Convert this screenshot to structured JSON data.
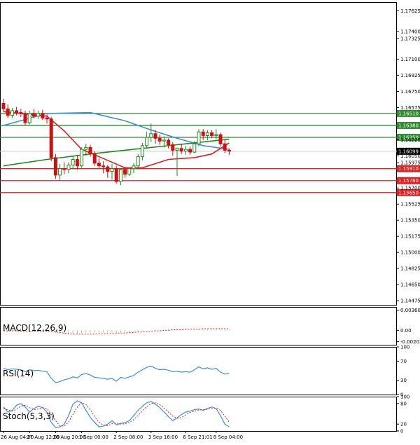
{
  "chart_data": {
    "type": "candlestick",
    "main": {
      "y_ticks": [
        "1.17625",
        "1.17400",
        "1.17325",
        "1.17100",
        "1.16925",
        "1.16750",
        "1.16575",
        "1.16225",
        "1.16050",
        "1.15975",
        "1.15700",
        "1.15525",
        "1.15350",
        "1.15175",
        "1.15000",
        "1.14825",
        "1.14650",
        "1.14475"
      ],
      "y_tick_values": [
        1.17625,
        1.174,
        1.17325,
        1.171,
        1.16925,
        1.1675,
        1.16575,
        1.16225,
        1.1605,
        1.15975,
        1.157,
        1.15525,
        1.1535,
        1.15175,
        1.15,
        1.14825,
        1.1465,
        1.14475
      ],
      "ylim": [
        1.1443,
        1.1772
      ],
      "levels": [
        {
          "label": "1.16510",
          "value": 1.1651,
          "color": "#2e8b2e"
        },
        {
          "label": "1.16380",
          "value": 1.1638,
          "color": "#2e8b2e"
        },
        {
          "label": "1.16250",
          "value": 1.1625,
          "color": "#2e8b2e"
        },
        {
          "label": "1.15910",
          "value": 1.1591,
          "color": "#e02020"
        },
        {
          "label": "1.15780",
          "value": 1.1578,
          "color": "#e02020"
        },
        {
          "label": "1.15650",
          "value": 1.1565,
          "color": "#e02020"
        }
      ],
      "current_price": {
        "label": "1.16099",
        "value": 1.16099
      },
      "candles": [
        [
          1.1662,
          1.1667,
          1.1653,
          1.1656
        ],
        [
          1.1656,
          1.1661,
          1.1646,
          1.1649
        ],
        [
          1.1649,
          1.1657,
          1.1646,
          1.1654
        ],
        [
          1.1654,
          1.1658,
          1.1649,
          1.1652
        ],
        [
          1.1652,
          1.1656,
          1.1647,
          1.1651
        ],
        [
          1.1651,
          1.1654,
          1.1638,
          1.1641
        ],
        [
          1.1641,
          1.1654,
          1.1639,
          1.1651
        ],
        [
          1.1651,
          1.1656,
          1.1646,
          1.1648
        ],
        [
          1.1648,
          1.1654,
          1.1645,
          1.1651
        ],
        [
          1.1651,
          1.1655,
          1.1644,
          1.1646
        ],
        [
          1.1646,
          1.165,
          1.164,
          1.1645
        ],
        [
          1.1645,
          1.1647,
          1.1599,
          1.1603
        ],
        [
          1.1603,
          1.1607,
          1.158,
          1.1584
        ],
        [
          1.1584,
          1.1596,
          1.1579,
          1.1591
        ],
        [
          1.1591,
          1.1598,
          1.1585,
          1.159
        ],
        [
          1.159,
          1.1598,
          1.1586,
          1.1595
        ],
        [
          1.1595,
          1.1605,
          1.1591,
          1.1601
        ],
        [
          1.1601,
          1.1606,
          1.159,
          1.1594
        ],
        [
          1.1594,
          1.1614,
          1.1592,
          1.1612
        ],
        [
          1.1612,
          1.1618,
          1.1605,
          1.1614
        ],
        [
          1.1614,
          1.1617,
          1.1604,
          1.1607
        ],
        [
          1.1607,
          1.161,
          1.1594,
          1.1597
        ],
        [
          1.1597,
          1.1602,
          1.1591,
          1.1594
        ],
        [
          1.1594,
          1.1599,
          1.1586,
          1.1593
        ],
        [
          1.1593,
          1.1595,
          1.1581,
          1.1588
        ],
        [
          1.1588,
          1.1596,
          1.1579,
          1.1591
        ],
        [
          1.1591,
          1.1594,
          1.1575,
          1.1577
        ],
        [
          1.1577,
          1.1591,
          1.1573,
          1.159
        ],
        [
          1.159,
          1.1593,
          1.1581,
          1.1585
        ],
        [
          1.1585,
          1.1592,
          1.1583,
          1.1591
        ],
        [
          1.1591,
          1.1597,
          1.1586,
          1.1594
        ],
        [
          1.1594,
          1.1607,
          1.159,
          1.1604
        ],
        [
          1.1604,
          1.1619,
          1.16,
          1.1616
        ],
        [
          1.1616,
          1.1631,
          1.1613,
          1.1625
        ],
        [
          1.1625,
          1.164,
          1.162,
          1.1629
        ],
        [
          1.1629,
          1.1633,
          1.1618,
          1.1624
        ],
        [
          1.1624,
          1.1628,
          1.1617,
          1.1621
        ],
        [
          1.1621,
          1.1626,
          1.1614,
          1.1622
        ],
        [
          1.1622,
          1.1624,
          1.1613,
          1.1617
        ],
        [
          1.1617,
          1.162,
          1.1605,
          1.1611
        ],
        [
          1.1611,
          1.1614,
          1.1583,
          1.1613
        ],
        [
          1.1613,
          1.1618,
          1.1607,
          1.161
        ],
        [
          1.161,
          1.1616,
          1.1606,
          1.1612
        ],
        [
          1.1612,
          1.1615,
          1.1606,
          1.1609
        ],
        [
          1.1609,
          1.1621,
          1.1608,
          1.1618
        ],
        [
          1.1618,
          1.1634,
          1.1615,
          1.1631
        ],
        [
          1.1631,
          1.1634,
          1.1622,
          1.1627
        ],
        [
          1.1627,
          1.1633,
          1.1622,
          1.163
        ],
        [
          1.163,
          1.1633,
          1.1624,
          1.1627
        ],
        [
          1.1627,
          1.1634,
          1.1623,
          1.1628
        ],
        [
          1.1628,
          1.163,
          1.1615,
          1.1618
        ],
        [
          1.1618,
          1.1622,
          1.1608,
          1.1611
        ],
        [
          1.1611,
          1.1613,
          1.1606,
          1.161
        ]
      ],
      "ma_slow_points": [
        [
          1.1638,
          0
        ],
        [
          1.1651,
          10
        ],
        [
          1.1652,
          20
        ],
        [
          1.1643,
          28
        ],
        [
          1.1633,
          34
        ],
        [
          1.1624,
          40
        ],
        [
          1.1616,
          46
        ],
        [
          1.1612,
          52
        ]
      ],
      "ma_fast_points": [
        [
          1.1653,
          0
        ],
        [
          1.1648,
          10
        ],
        [
          1.1632,
          14
        ],
        [
          1.1612,
          18
        ],
        [
          1.16,
          24
        ],
        [
          1.1592,
          28
        ],
        [
          1.1592,
          32
        ],
        [
          1.1601,
          38
        ],
        [
          1.1603,
          44
        ],
        [
          1.1607,
          48
        ],
        [
          1.1619,
          52
        ]
      ],
      "ma_long_points": [
        [
          1.1594,
          0
        ],
        [
          1.1601,
          10
        ],
        [
          1.1607,
          20
        ],
        [
          1.1612,
          30
        ],
        [
          1.1617,
          40
        ],
        [
          1.1623,
          52
        ]
      ]
    },
    "x_labels": [
      "26 Aug 04:00",
      "27 Aug 12:00",
      "28 Aug 20:00",
      "1 Sep 00:00",
      "2 Sep 08:00",
      "3 Sep 16:00",
      "6 Sep 21:01",
      "8 Sep 04:00"
    ],
    "x_label_index": [
      0,
      6,
      12,
      18,
      26,
      34,
      42,
      49
    ],
    "macd": {
      "label": "MACD(12,26,9)",
      "ticks": [
        "0.003604",
        "0.00",
        "-0.002022"
      ],
      "tick_values": [
        0.003604,
        0,
        -0.002022
      ],
      "ylim": [
        -0.0026,
        0.0042
      ],
      "histogram": [
        -0.0002,
        -0.0002,
        -0.0002,
        -0.0002,
        -0.0002,
        -0.0001,
        -0.0001,
        -0.0001,
        -0.0001,
        -0.0001,
        -0.0001,
        -0.0003,
        -0.0005,
        -0.0006,
        -0.0007,
        -0.0007,
        -0.0006,
        -0.0006,
        -0.0005,
        -0.0004,
        -0.0004,
        -0.0004,
        -0.0004,
        -0.0004,
        -0.0004,
        -0.0004,
        -0.0004,
        -0.0004,
        -0.0003,
        -0.0003,
        -0.0002,
        -0.0002,
        -0.0001,
        0,
        0.0001,
        0.0001,
        0.0001,
        0.0001,
        0.0001,
        0.0001,
        0.0001,
        0.0001,
        0.0001,
        0.0001,
        0.0001,
        0.0002,
        0.0002,
        0.0002,
        0.0002,
        0.0002,
        0.0002,
        0.0002,
        0.0002
      ],
      "signal": [
        -0.0001,
        -0.0001,
        -0.0001,
        -0.0001,
        -0.0002,
        -0.0002,
        -0.0002,
        -0.0002,
        -0.0002,
        -0.0002,
        -0.0002,
        -0.0002,
        -0.0003,
        -0.0004,
        -0.0005,
        -0.0006,
        -0.0007,
        -0.0007,
        -0.0007,
        -0.0007,
        -0.0007,
        -0.0007,
        -0.0006,
        -0.0006,
        -0.0006,
        -0.0006,
        -0.0005,
        -0.0005,
        -0.0005,
        -0.0004,
        -0.0004,
        -0.0003,
        -0.0003,
        -0.0002,
        -0.0002,
        -0.0001,
        -0.0001,
        0,
        0,
        0.0001,
        0.0001,
        0.0001,
        0.0002,
        0.0002,
        0.0002,
        0.0002,
        0.0003,
        0.0003,
        0.0003,
        0.0003,
        0.0003,
        0.0003,
        0.0003
      ]
    },
    "rsi": {
      "label": "RSI(14)",
      "ticks": [
        "100",
        "70",
        "30",
        "0"
      ],
      "tick_values": [
        100,
        70,
        30,
        0
      ],
      "ylim": [
        0,
        100
      ],
      "values": [
        55,
        52,
        54,
        53,
        52,
        48,
        52,
        50,
        51,
        49,
        48,
        34,
        25,
        27,
        31,
        33,
        37,
        35,
        42,
        44,
        41,
        36,
        35,
        34,
        32,
        34,
        28,
        36,
        34,
        37,
        40,
        47,
        52,
        57,
        60,
        55,
        52,
        53,
        51,
        48,
        49,
        47,
        48,
        47,
        52,
        58,
        54,
        56,
        53,
        55,
        47,
        43,
        44
      ]
    },
    "stoch": {
      "label": "Stoch(5,3,3)",
      "ticks": [
        "100",
        "80",
        "20",
        "0"
      ],
      "tick_values": [
        100,
        80,
        20,
        0
      ],
      "ylim": [
        0,
        100
      ],
      "k": [
        70,
        55,
        60,
        75,
        80,
        70,
        55,
        65,
        72,
        68,
        55,
        25,
        10,
        12,
        20,
        45,
        78,
        88,
        82,
        60,
        40,
        25,
        12,
        14,
        20,
        30,
        18,
        22,
        24,
        30,
        45,
        60,
        72,
        82,
        86,
        78,
        68,
        55,
        42,
        30,
        38,
        48,
        55,
        58,
        62,
        64,
        60,
        66,
        70,
        65,
        45,
        20,
        12
      ],
      "d": [
        65,
        62,
        58,
        63,
        72,
        75,
        68,
        62,
        64,
        68,
        65,
        48,
        30,
        15,
        14,
        26,
        48,
        70,
        83,
        77,
        62,
        42,
        26,
        17,
        15,
        21,
        23,
        20,
        21,
        25,
        33,
        45,
        59,
        71,
        80,
        82,
        77,
        67,
        55,
        43,
        37,
        39,
        47,
        54,
        58,
        61,
        62,
        63,
        65,
        67,
        60,
        43,
        26
      ]
    }
  }
}
